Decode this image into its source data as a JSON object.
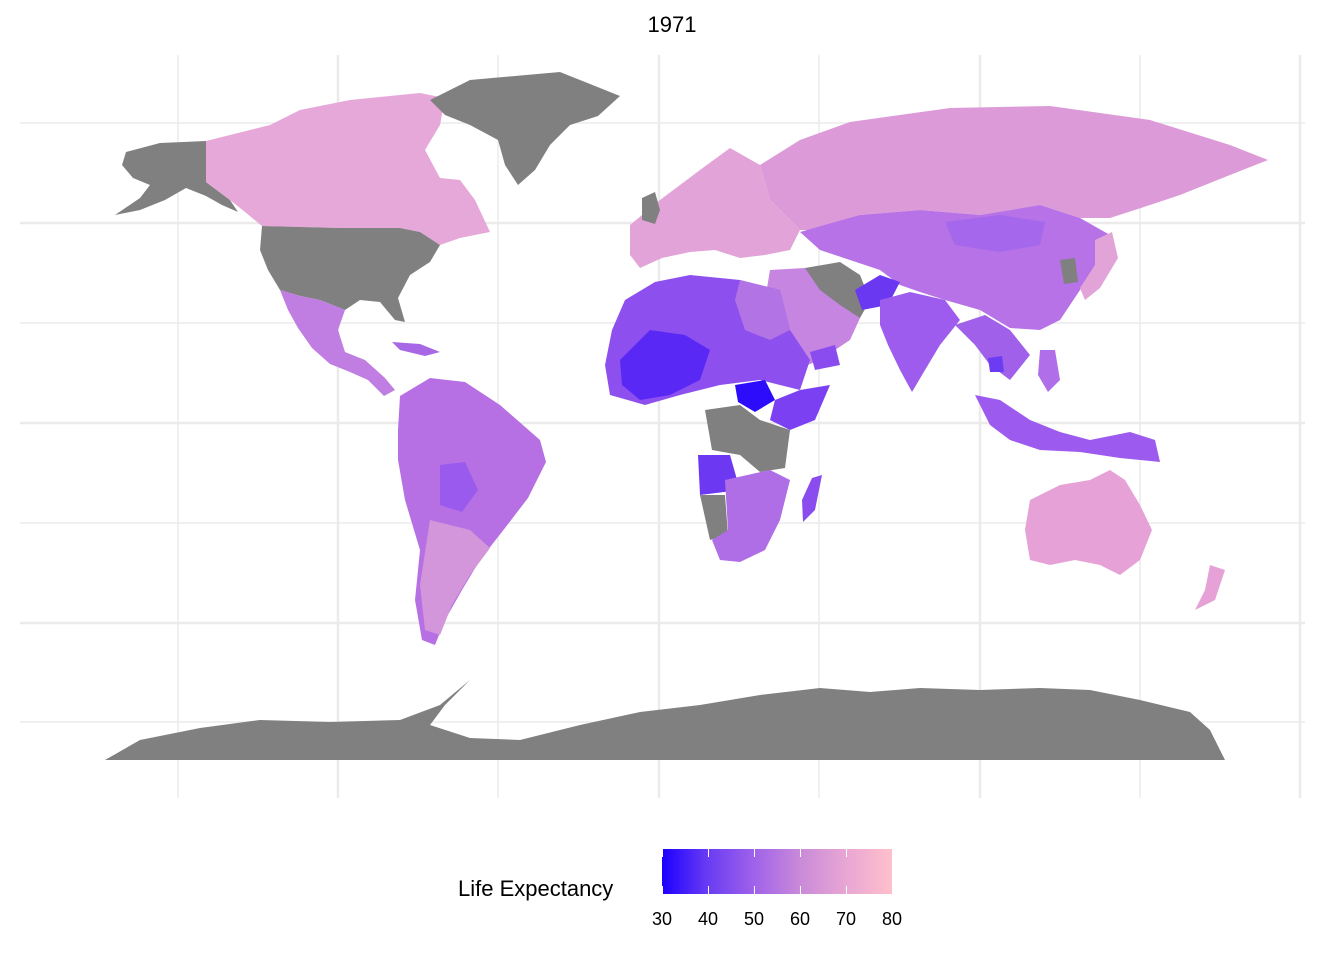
{
  "title": "1971",
  "legend": {
    "title": "Life Expectancy",
    "ticks": [
      "30",
      "40",
      "50",
      "60",
      "70",
      "80"
    ],
    "min": 30,
    "max": 80,
    "colors": {
      "low": "#1c00ff",
      "mid": "#a062ea",
      "high": "#ffc0cb",
      "no_data": "#808080"
    }
  }
}
